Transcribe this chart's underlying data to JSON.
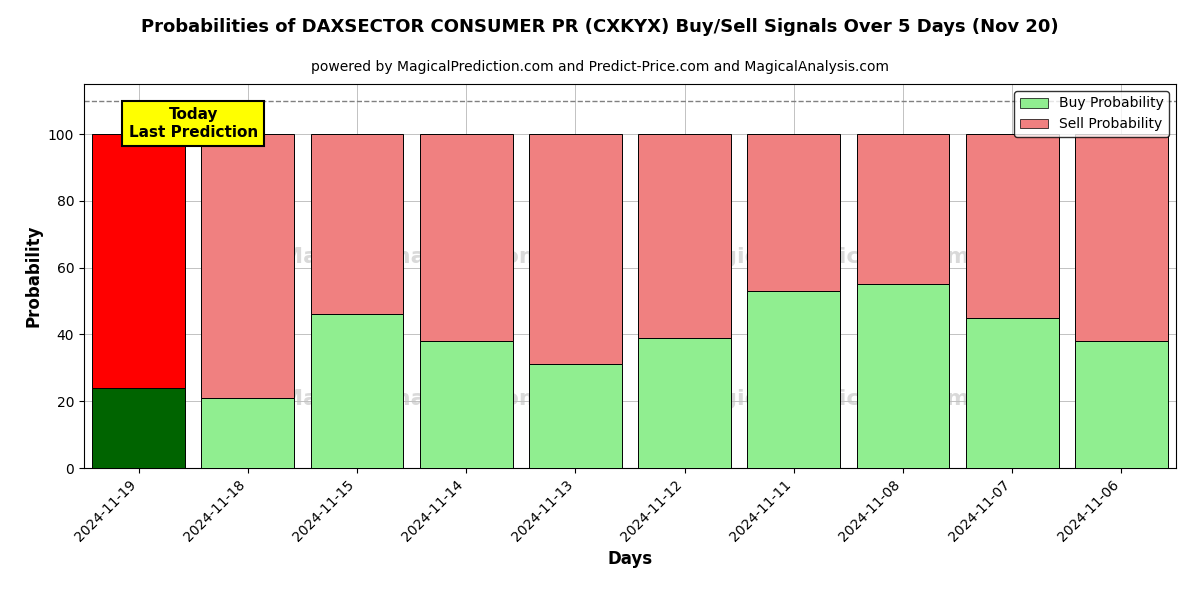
{
  "title": "Probabilities of DAXSECTOR CONSUMER PR (CXKYX) Buy/Sell Signals Over 5 Days (Nov 20)",
  "subtitle": "powered by MagicalPrediction.com and Predict-Price.com and MagicalAnalysis.com",
  "xlabel": "Days",
  "ylabel": "Probability",
  "dates": [
    "2024-11-19",
    "2024-11-18",
    "2024-11-15",
    "2024-11-14",
    "2024-11-13",
    "2024-11-12",
    "2024-11-11",
    "2024-11-08",
    "2024-11-07",
    "2024-11-06"
  ],
  "buy_values": [
    24,
    21,
    46,
    38,
    31,
    39,
    53,
    55,
    45,
    38
  ],
  "sell_values": [
    76,
    79,
    54,
    62,
    69,
    61,
    47,
    45,
    55,
    62
  ],
  "today_buy_color": "#006400",
  "today_sell_color": "#ff0000",
  "normal_buy_color": "#90ee90",
  "normal_sell_color": "#f08080",
  "today_label_bg": "#ffff00",
  "dashed_line_y": 110,
  "ylim": [
    0,
    115
  ],
  "yticks": [
    0,
    20,
    40,
    60,
    80,
    100
  ],
  "legend_buy": "Buy Probability",
  "legend_sell": "Sell Probability",
  "bar_width": 0.85,
  "background_color": "#ffffff",
  "grid_color": "#aaaaaa"
}
